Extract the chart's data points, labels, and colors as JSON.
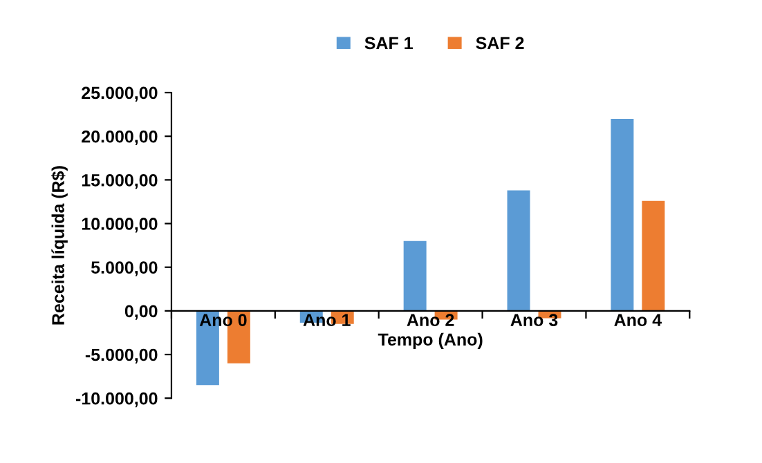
{
  "chart_data": {
    "type": "bar",
    "xlabel": "Tempo (Ano)",
    "ylabel": "Receita líquida (R$)",
    "categories": [
      "Ano 0",
      "Ano 1",
      "Ano 2",
      "Ano 3",
      "Ano 4"
    ],
    "series": [
      {
        "name": "SAF 1",
        "color": "#5b9bd5",
        "values": [
          -8500,
          -1350,
          8000,
          13800,
          22000
        ]
      },
      {
        "name": "SAF 2",
        "color": "#ed7d31",
        "values": [
          -6000,
          -1500,
          -1000,
          -850,
          12600
        ]
      }
    ],
    "ylim": [
      -10000,
      25000
    ],
    "yticks": [
      {
        "value": -10000,
        "label": "-10.000,00"
      },
      {
        "value": -5000,
        "label": "-5.000,00"
      },
      {
        "value": 0,
        "label": "0,00"
      },
      {
        "value": 5000,
        "label": "5.000,00"
      },
      {
        "value": 10000,
        "label": "10.000,00"
      },
      {
        "value": 15000,
        "label": "15.000,00"
      },
      {
        "value": 20000,
        "label": "20.000,00"
      },
      {
        "value": 25000,
        "label": "25.000,00"
      }
    ],
    "grid": false,
    "legend": "top"
  }
}
